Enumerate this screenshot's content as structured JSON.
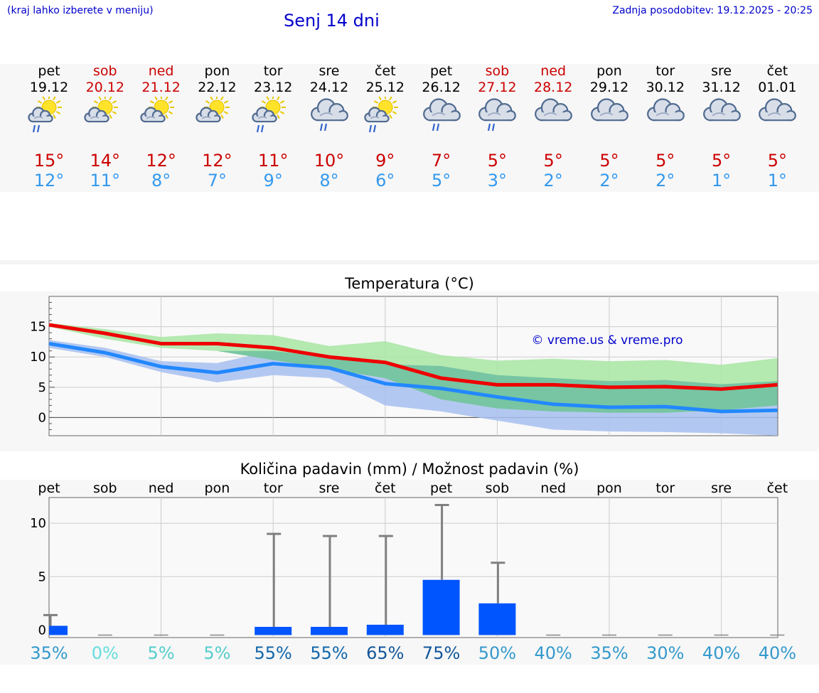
{
  "header": {
    "hint": "(kraj lahko izberete v meniju)",
    "title": "Senj 14 dni",
    "updated": "Zadnja posodobitev: 19.12.2025 - 20:25"
  },
  "days": [
    {
      "name": "pet",
      "date": "19.12",
      "weekend": false,
      "icon": "sun-cloud-rain-icon",
      "tmax": "15°",
      "tmin": "12°"
    },
    {
      "name": "sob",
      "date": "20.12",
      "weekend": true,
      "icon": "sun-cloud-icon",
      "tmax": "14°",
      "tmin": "11°"
    },
    {
      "name": "ned",
      "date": "21.12",
      "weekend": true,
      "icon": "sun-cloud-icon",
      "tmax": "12°",
      "tmin": "8°"
    },
    {
      "name": "pon",
      "date": "22.12",
      "weekend": false,
      "icon": "sun-cloud-icon",
      "tmax": "12°",
      "tmin": "7°"
    },
    {
      "name": "tor",
      "date": "23.12",
      "weekend": false,
      "icon": "sun-cloud-rain-icon",
      "tmax": "11°",
      "tmin": "9°"
    },
    {
      "name": "sre",
      "date": "24.12",
      "weekend": false,
      "icon": "cloud-rain-icon",
      "tmax": "10°",
      "tmin": "8°"
    },
    {
      "name": "čet",
      "date": "25.12",
      "weekend": false,
      "icon": "sun-cloud-rain-icon",
      "tmax": "9°",
      "tmin": "6°"
    },
    {
      "name": "pet",
      "date": "26.12",
      "weekend": false,
      "icon": "cloud-rain-icon",
      "tmax": "7°",
      "tmin": "5°"
    },
    {
      "name": "sob",
      "date": "27.12",
      "weekend": true,
      "icon": "cloud-rain-icon",
      "tmax": "5°",
      "tmin": "3°"
    },
    {
      "name": "ned",
      "date": "28.12",
      "weekend": true,
      "icon": "cloud-icon",
      "tmax": "5°",
      "tmin": "2°"
    },
    {
      "name": "pon",
      "date": "29.12",
      "weekend": false,
      "icon": "cloud-icon",
      "tmax": "5°",
      "tmin": "2°"
    },
    {
      "name": "tor",
      "date": "30.12",
      "weekend": false,
      "icon": "cloud-icon",
      "tmax": "5°",
      "tmin": "2°"
    },
    {
      "name": "sre",
      "date": "31.12",
      "weekend": false,
      "icon": "cloud-icon",
      "tmax": "5°",
      "tmin": "1°"
    },
    {
      "name": "čet",
      "date": "01.01",
      "weekend": false,
      "icon": "cloud-icon",
      "tmax": "5°",
      "tmin": "1°"
    }
  ],
  "colors": {
    "title": "#0000cc",
    "weekend": "#cc0000",
    "tmax": "#ee0000",
    "tmin": "#2288ff",
    "band_max": "#a8e6a3",
    "band_min": "#a7bff0",
    "band_overlap": "#6fbfa0",
    "bar": "#0055ff",
    "whisker": "#808080"
  },
  "chart_data": [
    {
      "type": "line",
      "title": "Temperatura (°C)",
      "watermark": "© vreme.us & vreme.pro",
      "ylim": [
        -3,
        20
      ],
      "yticks": [
        0,
        5,
        10,
        15
      ],
      "x": [
        0,
        1,
        2,
        3,
        4,
        5,
        6,
        7,
        8,
        9,
        10,
        11,
        12,
        13
      ],
      "series": [
        {
          "name": "max",
          "values": [
            15.3,
            13.9,
            12.2,
            12.2,
            11.5,
            10.0,
            9.1,
            6.5,
            5.4,
            5.4,
            5.0,
            5.1,
            4.7,
            5.4
          ]
        },
        {
          "name": "min",
          "values": [
            12.2,
            10.7,
            8.4,
            7.4,
            8.9,
            8.2,
            5.6,
            4.8,
            3.4,
            2.2,
            1.7,
            1.8,
            1.0,
            1.2
          ]
        }
      ],
      "bands": [
        {
          "name": "max-range",
          "low": [
            15.0,
            13.0,
            11.5,
            11.0,
            9.5,
            8.0,
            6.5,
            3.0,
            1.5,
            1.0,
            0.8,
            0.8,
            1.2,
            2.0
          ],
          "high": [
            15.6,
            14.6,
            13.3,
            13.9,
            13.6,
            11.8,
            12.6,
            10.3,
            9.4,
            9.7,
            9.3,
            9.5,
            8.7,
            9.8
          ]
        },
        {
          "name": "min-range",
          "low": [
            11.5,
            10.0,
            7.5,
            5.8,
            7.0,
            6.5,
            2.0,
            1.0,
            -0.5,
            -2.0,
            -2.3,
            -2.4,
            -2.6,
            -3.0
          ],
          "high": [
            12.8,
            11.5,
            9.3,
            9.0,
            11.0,
            10.0,
            8.8,
            8.5,
            7.0,
            6.5,
            6.0,
            6.2,
            5.5,
            6.0
          ]
        }
      ]
    },
    {
      "type": "bar",
      "title": "Količina padavin (mm) / Možnost padavin (%)",
      "categories": [
        "pet",
        "sob",
        "ned",
        "pon",
        "tor",
        "sre",
        "čet",
        "pet",
        "sob",
        "ned",
        "pon",
        "tor",
        "sre",
        "čet"
      ],
      "ylim": [
        -0.7,
        12.4
      ],
      "yticks": [
        0,
        5,
        10
      ],
      "values": [
        0.4,
        0.0,
        0.0,
        0.0,
        0.3,
        0.3,
        0.5,
        4.7,
        2.5,
        0.0,
        0.0,
        0.0,
        0.0,
        0.0
      ],
      "whisker_high": [
        1.4,
        0.0,
        0.0,
        0.0,
        9.0,
        8.8,
        8.8,
        11.7,
        6.3,
        0.0,
        0.0,
        0.0,
        0.0,
        0.0
      ],
      "probability": [
        "35%",
        "0%",
        "5%",
        "5%",
        "55%",
        "55%",
        "65%",
        "75%",
        "50%",
        "40%",
        "35%",
        "30%",
        "40%",
        "40%"
      ],
      "probability_colors": [
        "#3399cc",
        "#66dddd",
        "#55cccc",
        "#55cccc",
        "#1166aa",
        "#1166aa",
        "#115599",
        "#115599",
        "#3399cc",
        "#3399cc",
        "#3399cc",
        "#3399cc",
        "#3399cc",
        "#3399cc"
      ]
    }
  ]
}
